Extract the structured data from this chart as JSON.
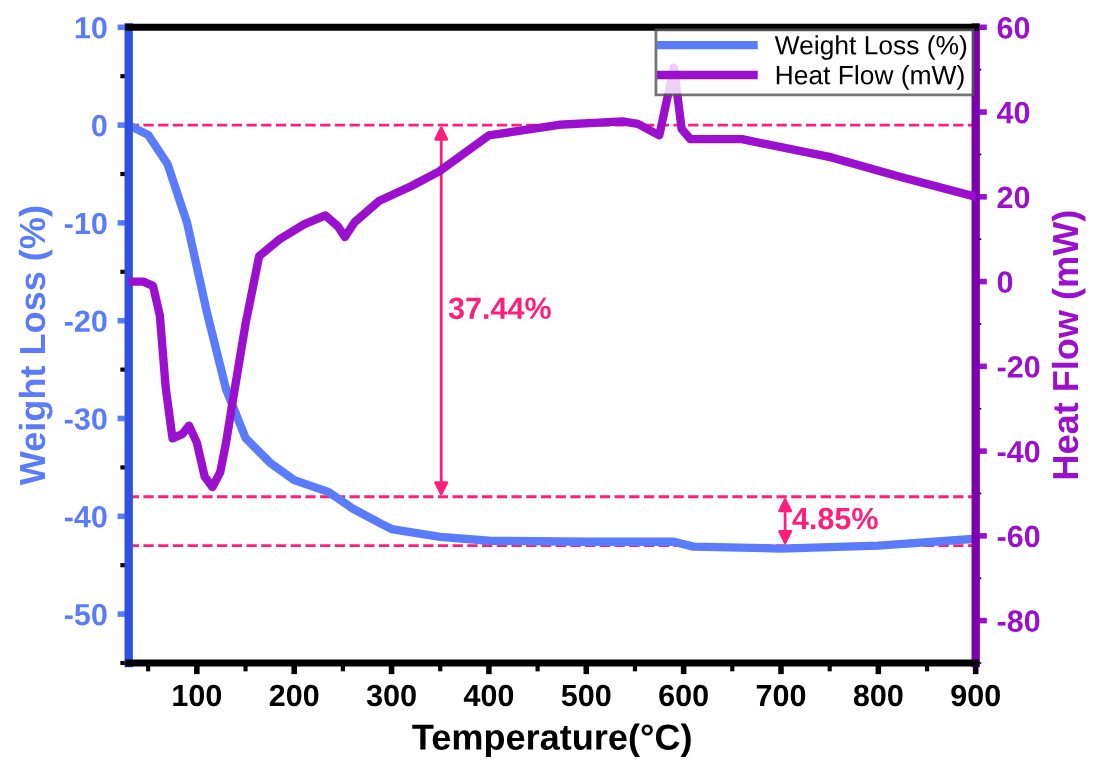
{
  "chart_data": {
    "type": "line",
    "xlabel": "Temperature(°C)",
    "ylabel": "Weight Loss (%)",
    "y2label": "Heat Flow (mW)",
    "xlim": [
      30,
      900
    ],
    "xticks": [
      100,
      200,
      300,
      400,
      500,
      600,
      700,
      800,
      900
    ],
    "ylim": [
      -55,
      10
    ],
    "yticks": [
      -50,
      -40,
      -30,
      -20,
      -10,
      0,
      10
    ],
    "y2lim": [
      -90,
      60
    ],
    "y2ticks": [
      -80,
      -60,
      -40,
      -20,
      0,
      20,
      40,
      60
    ],
    "legend": "top right",
    "grid": false,
    "marker": "none",
    "line_style": "solid",
    "series": [
      {
        "name": "Weight Loss (%)",
        "color": "#5b7cfa",
        "axis": "y",
        "x": [
          30,
          50,
          70,
          90,
          110,
          130,
          150,
          175,
          200,
          235,
          260,
          290,
          300,
          350,
          400,
          500,
          590,
          610,
          700,
          800,
          900
        ],
        "values": [
          0,
          -1,
          -4,
          -10,
          -19,
          -27,
          -32,
          -34.5,
          -36.3,
          -37.5,
          -39.2,
          -40.8,
          -41.3,
          -42.1,
          -42.5,
          -42.6,
          -42.6,
          -43.1,
          -43.3,
          -43,
          -42.3
        ]
      },
      {
        "name": "Heat Flow (mW)",
        "color": "#9b0fcf",
        "axis": "y2",
        "x": [
          30,
          45,
          55,
          62,
          68,
          75,
          85,
          92,
          100,
          108,
          116,
          124,
          130,
          137,
          150,
          164,
          185,
          210,
          232,
          245,
          252,
          262,
          287,
          320,
          349,
          400,
          472,
          513,
          537,
          553,
          575,
          582,
          590,
          598,
          607,
          660,
          752,
          824,
          900
        ],
        "values": [
          0,
          0,
          -1,
          -8,
          -25,
          -37,
          -36,
          -34,
          -38,
          -46,
          -48.5,
          -45,
          -38,
          -28,
          -10,
          6,
          10,
          13.5,
          15.6,
          13,
          10.5,
          14,
          19,
          22.5,
          26,
          34.5,
          37,
          37.5,
          37.8,
          37.2,
          34.5,
          42,
          50.5,
          36,
          33.6,
          33.6,
          29.3,
          24.6,
          20
        ]
      }
    ],
    "ref_lines": [
      {
        "axis": "y",
        "value": 0,
        "color": "#ff1f7a",
        "line_style": "dashed"
      },
      {
        "axis": "y",
        "value": -38,
        "color": "#ff1f7a",
        "line_style": "dashed"
      },
      {
        "axis": "y",
        "value": -43,
        "color": "#ff1f7a",
        "line_style": "dashed"
      }
    ],
    "annotations": [
      "37.44%",
      "4.85%"
    ]
  }
}
